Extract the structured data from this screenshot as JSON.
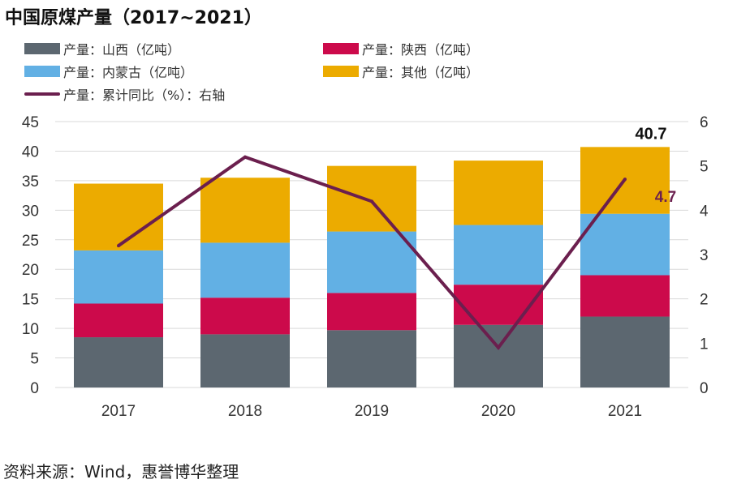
{
  "title": "中国原煤产量（2017~2021）",
  "source": "资料来源：Wind，惠誉博华整理",
  "legend": [
    {
      "label": "产量：山西（亿吨）",
      "color": "#5c6770",
      "kind": "box"
    },
    {
      "label": "产量：陕西（亿吨）",
      "color": "#cc0a4b",
      "kind": "box"
    },
    {
      "label": "产量：内蒙古（亿吨）",
      "color": "#62b0e4",
      "kind": "box"
    },
    {
      "label": "产量：其他（亿吨）",
      "color": "#ecab00",
      "kind": "box"
    },
    {
      "label": "产量：累计同比（%）：右轴",
      "color": "#6b1f4e",
      "kind": "line"
    }
  ],
  "chart_data": {
    "type": "bar",
    "stacked": true,
    "categories": [
      "2017",
      "2018",
      "2019",
      "2020",
      "2021"
    ],
    "series": [
      {
        "name": "产量：山西（亿吨）",
        "color": "#5c6770",
        "values": [
          8.5,
          9.0,
          9.7,
          10.6,
          12.0
        ]
      },
      {
        "name": "产量：陕西（亿吨）",
        "color": "#cc0a4b",
        "values": [
          5.7,
          6.2,
          6.3,
          6.8,
          7.0
        ]
      },
      {
        "name": "产量：内蒙古（亿吨）",
        "color": "#62b0e4",
        "values": [
          9.0,
          9.3,
          10.4,
          10.1,
          10.4
        ]
      },
      {
        "name": "产量：其他（亿吨）",
        "color": "#ecab00",
        "values": [
          11.3,
          11.0,
          11.1,
          10.9,
          11.3
        ]
      }
    ],
    "line_series": {
      "name": "产量：累计同比（%）：右轴",
      "color": "#6b1f4e",
      "axis": "right",
      "values": [
        3.2,
        5.2,
        4.2,
        0.9,
        4.7
      ]
    },
    "y_left": {
      "min": 0,
      "max": 45,
      "ticks": [
        0,
        5,
        10,
        15,
        20,
        25,
        30,
        35,
        40,
        45
      ]
    },
    "y_right": {
      "min": 0,
      "max": 6,
      "ticks": [
        0,
        1,
        2,
        3,
        4,
        5,
        6
      ]
    },
    "annotations": [
      {
        "text": "40.7",
        "category": "2021",
        "kind": "total"
      },
      {
        "text": "4.7",
        "category": "2021",
        "kind": "line-value"
      }
    ],
    "grid": "horizontal",
    "legend_position": "top"
  }
}
